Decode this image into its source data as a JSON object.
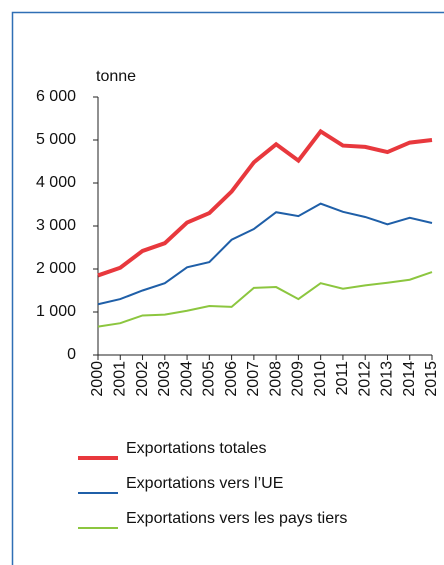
{
  "chart_data": {
    "type": "line",
    "y_label": "tonne",
    "categories": [
      "2000",
      "2001",
      "2002",
      "2003",
      "2004",
      "2005",
      "2006",
      "2007",
      "2008",
      "2009",
      "2010",
      "2011",
      "2012",
      "2013",
      "2014",
      "2015"
    ],
    "series": [
      {
        "name": "Exportations totales",
        "color": "#e8383d",
        "values": [
          1850,
          2030,
          2420,
          2600,
          3080,
          3300,
          3800,
          4480,
          4900,
          4520,
          5200,
          4870,
          4840,
          4720,
          4940,
          5000
        ]
      },
      {
        "name": "Exportations vers l’UE",
        "color": "#1f5fa8",
        "values": [
          1180,
          1300,
          1500,
          1670,
          2040,
          2160,
          2680,
          2930,
          3320,
          3230,
          3520,
          3330,
          3210,
          3040,
          3190,
          3070
        ]
      },
      {
        "name": "Exportations vers les pays tiers",
        "color": "#8cc63f",
        "values": [
          660,
          740,
          920,
          940,
          1030,
          1140,
          1120,
          1560,
          1580,
          1300,
          1670,
          1540,
          1620,
          1680,
          1750,
          1930
        ]
      }
    ],
    "ylim": [
      0,
      6000
    ],
    "yticks": [
      0,
      {
        "value": 1000,
        "label": "1 000"
      },
      {
        "value": 2000,
        "label": "2 000"
      },
      {
        "value": 3000,
        "label": "3 000"
      },
      {
        "value": 4000,
        "label": "4 000"
      },
      {
        "value": 5000,
        "label": "5 000"
      },
      {
        "value": 6000,
        "label": "6 000"
      }
    ],
    "grid": false
  }
}
